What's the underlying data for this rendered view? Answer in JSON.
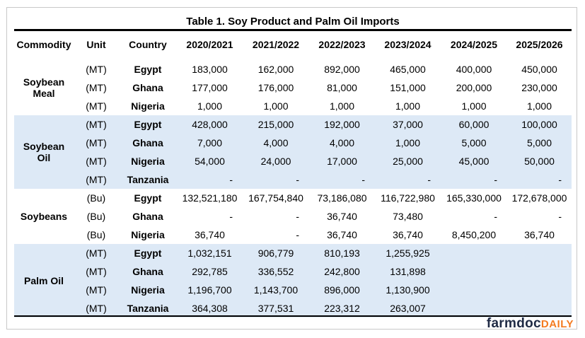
{
  "title": "Table 1. Soy Product and Palm Oil Imports",
  "headers": [
    "Commodity",
    "Unit",
    "Country",
    "2020/2021",
    "2021/2022",
    "2022/2023",
    "2023/2024",
    "2024/2025",
    "2025/2026"
  ],
  "groups": [
    {
      "commodity": "Soybean Meal",
      "rows": [
        {
          "unit": "(MT)",
          "country": "Egypt",
          "values": [
            "183,000",
            "162,000",
            "892,000",
            "465,000",
            "400,000",
            "450,000"
          ]
        },
        {
          "unit": "(MT)",
          "country": "Ghana",
          "values": [
            "177,000",
            "176,000",
            "81,000",
            "151,000",
            "200,000",
            "230,000"
          ]
        },
        {
          "unit": "(MT)",
          "country": "Nigeria",
          "values": [
            "1,000",
            "1,000",
            "1,000",
            "1,000",
            "1,000",
            "1,000"
          ]
        }
      ]
    },
    {
      "commodity": "Soybean Oil",
      "rows": [
        {
          "unit": "(MT)",
          "country": "Egypt",
          "values": [
            "428,000",
            "215,000",
            "192,000",
            "37,000",
            "60,000",
            "100,000"
          ]
        },
        {
          "unit": "(MT)",
          "country": "Ghana",
          "values": [
            "7,000",
            "4,000",
            "4,000",
            "1,000",
            "5,000",
            "5,000"
          ]
        },
        {
          "unit": "(MT)",
          "country": "Nigeria",
          "values": [
            "54,000",
            "24,000",
            "17,000",
            "25,000",
            "45,000",
            "50,000"
          ]
        },
        {
          "unit": "(MT)",
          "country": "Tanzania",
          "values": [
            "-",
            "-",
            "-",
            "-",
            "-",
            "-"
          ]
        }
      ]
    },
    {
      "commodity": "Soybeans",
      "rows": [
        {
          "unit": "(Bu)",
          "country": "Egypt",
          "values": [
            "132,521,180",
            "167,754,840",
            "73,186,080",
            "116,722,980",
            "165,330,000",
            "172,678,000"
          ]
        },
        {
          "unit": "(Bu)",
          "country": "Ghana",
          "values": [
            "-",
            "-",
            "36,740",
            "73,480",
            "-",
            "-"
          ]
        },
        {
          "unit": "(Bu)",
          "country": "Nigeria",
          "values": [
            "36,740",
            "-",
            "36,740",
            "36,740",
            "8,450,200",
            "36,740"
          ]
        }
      ]
    },
    {
      "commodity": "Palm Oil",
      "rows": [
        {
          "unit": "(MT)",
          "country": "Egypt",
          "values": [
            "1,032,151",
            "906,779",
            "810,193",
            "1,255,925",
            "",
            ""
          ]
        },
        {
          "unit": "(MT)",
          "country": "Ghana",
          "values": [
            "292,785",
            "336,552",
            "242,800",
            "131,898",
            "",
            ""
          ]
        },
        {
          "unit": "(MT)",
          "country": "Nigeria",
          "values": [
            "1,196,700",
            "1,143,700",
            "896,000",
            "1,130,900",
            "",
            ""
          ]
        },
        {
          "unit": "(MT)",
          "country": "Tanzania",
          "values": [
            "364,308",
            "377,531",
            "223,312",
            "263,007",
            "",
            ""
          ]
        }
      ]
    }
  ],
  "logo": {
    "part1": "farmdoc",
    "part2": "DAILY"
  },
  "colors": {
    "band": "#dde9f6",
    "logo_dark": "#1f2a44",
    "logo_orange": "#f47b20"
  }
}
